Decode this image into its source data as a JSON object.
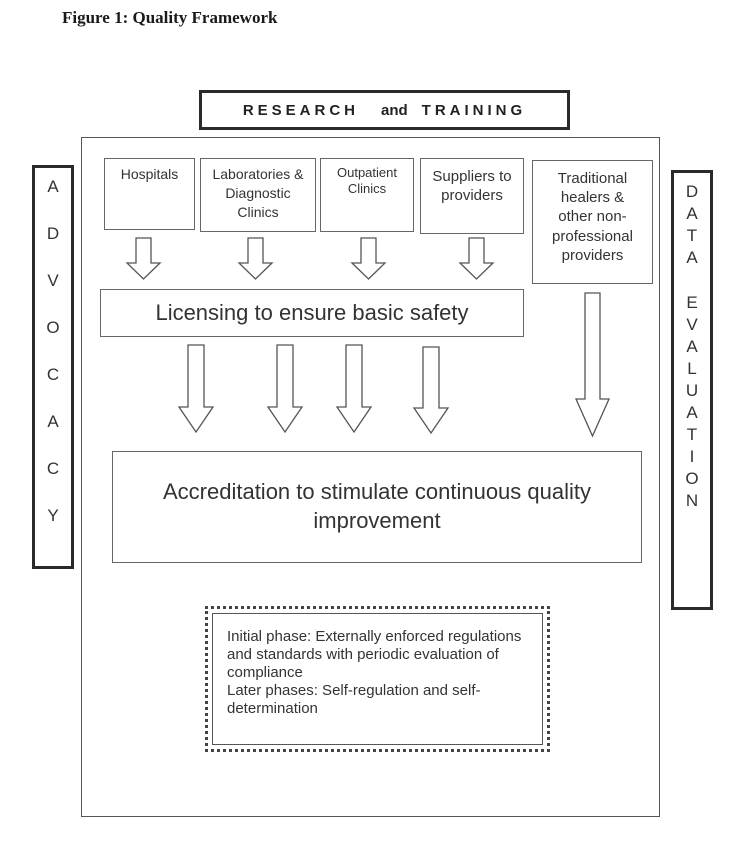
{
  "figure": {
    "title": "Figure 1: Quality Framework"
  },
  "banner": {
    "research": "RESEARCH",
    "and": "and",
    "training": "TRAINING"
  },
  "left_side": {
    "label": "ADVOCACY",
    "letters": [
      "A",
      "D",
      "V",
      "O",
      "C",
      "A",
      "C",
      "Y"
    ]
  },
  "right_side": {
    "label": "DATA EVALUATION",
    "letters": [
      "D",
      "A",
      "T",
      "A",
      "",
      "E",
      "V",
      "A",
      "L",
      "U",
      "A",
      "T",
      "I",
      "O",
      "N"
    ]
  },
  "providers": [
    {
      "label": "Hospitals"
    },
    {
      "label": "Laboratories & Diagnostic Clinics"
    },
    {
      "label": "Outpatient Clinics"
    },
    {
      "label": "Suppliers to providers"
    },
    {
      "label": "Traditional healers & other non-professional providers"
    }
  ],
  "licensing": {
    "label": "Licensing to ensure basic safety"
  },
  "accreditation": {
    "label": "Accreditation to stimulate continuous quality improvement"
  },
  "phases": {
    "initial": "Initial phase: Externally enforced regulations and standards with periodic evaluation of compliance",
    "later": "Later phases: Self-regulation and self-determination"
  }
}
